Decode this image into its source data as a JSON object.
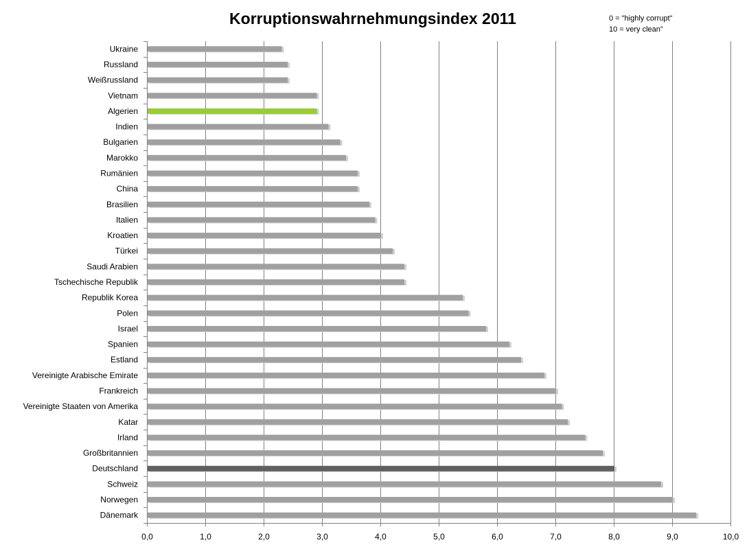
{
  "chart_data": {
    "type": "bar",
    "orientation": "horizontal",
    "title": "Korruptionswahrnehmungsindex 2011",
    "annotations": [
      "0 = \"highly corrupt\"",
      "10 = very clean”"
    ],
    "categories": [
      "Ukraine",
      "Russland",
      "Weißrussland",
      "Vietnam",
      "Algerien",
      "Indien",
      "Bulgarien",
      "Marokko",
      "Rumänien",
      "China",
      "Brasilien",
      "Italien",
      "Kroatien",
      "Türkei",
      "Saudi Arabien",
      "Tschechische Republik",
      "Republik Korea",
      "Polen",
      "Israel",
      "Spanien",
      "Estland",
      "Vereinigte Arabische Emirate",
      "Frankreich",
      "Vereinigte Staaten von Amerika",
      "Katar",
      "Irland",
      "Großbritannien",
      "Deutschland",
      "Schweiz",
      "Norwegen",
      "Dänemark"
    ],
    "values": [
      2.3,
      2.4,
      2.4,
      2.9,
      2.9,
      3.1,
      3.3,
      3.4,
      3.6,
      3.6,
      3.8,
      3.9,
      4.0,
      4.2,
      4.4,
      4.4,
      5.4,
      5.5,
      5.8,
      6.2,
      6.4,
      6.8,
      7.0,
      7.1,
      7.2,
      7.5,
      7.8,
      8.0,
      8.8,
      9.0,
      9.4
    ],
    "highlight": {
      "Algerien": "#9acd32",
      "Deutschland": "#606060"
    },
    "bar_color": "#a0a0a0",
    "xlim": [
      0,
      10
    ],
    "xticks": [
      "0,0",
      "1,0",
      "2,0",
      "3,0",
      "4,0",
      "5,0",
      "6,0",
      "7,0",
      "8,0",
      "9,0",
      "10,0"
    ],
    "grid": "vertical",
    "legend": "none"
  }
}
